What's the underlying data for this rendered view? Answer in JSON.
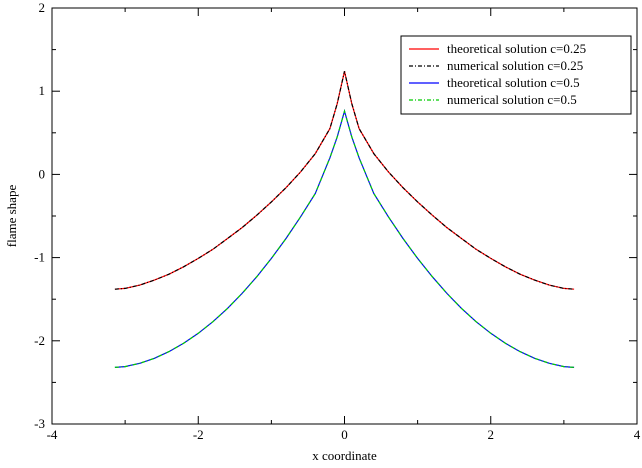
{
  "chart_data": {
    "type": "line",
    "xlabel": "x coordinate",
    "ylabel": "flame shape",
    "xlim": [
      -4,
      4
    ],
    "ylim": [
      -3,
      2
    ],
    "xticks": [
      -4,
      -2,
      0,
      2,
      4
    ],
    "yticks": [
      -3,
      -2,
      -1,
      0,
      1,
      2
    ],
    "x_tick_labels": [
      "-4",
      "-2",
      "0",
      "2",
      "4"
    ],
    "y_tick_labels": [
      "-3",
      "-2",
      "-1",
      "0",
      "1",
      "2"
    ],
    "grid": false,
    "legend_position": "top-right",
    "series": [
      {
        "name": "theoretical solution c=0.25",
        "color": "#ff0000",
        "dash": "solid",
        "x": [
          -3.14,
          -3.0,
          -2.8,
          -2.6,
          -2.4,
          -2.2,
          -2.0,
          -1.8,
          -1.6,
          -1.4,
          -1.2,
          -1.0,
          -0.8,
          -0.6,
          -0.4,
          -0.2,
          -0.1,
          0.0,
          0.1,
          0.2,
          0.4,
          0.6,
          0.8,
          1.0,
          1.2,
          1.4,
          1.6,
          1.8,
          2.0,
          2.2,
          2.4,
          2.6,
          2.8,
          3.0,
          3.14
        ],
        "y": [
          -1.38,
          -1.37,
          -1.33,
          -1.27,
          -1.2,
          -1.11,
          -1.01,
          -0.9,
          -0.77,
          -0.64,
          -0.49,
          -0.33,
          -0.16,
          0.03,
          0.25,
          0.55,
          0.85,
          1.24,
          0.85,
          0.55,
          0.25,
          0.03,
          -0.16,
          -0.33,
          -0.49,
          -0.64,
          -0.77,
          -0.9,
          -1.01,
          -1.11,
          -1.2,
          -1.27,
          -1.33,
          -1.37,
          -1.38
        ]
      },
      {
        "name": "numerical solution c=0.25",
        "color": "#000000",
        "dash": "dash-dot",
        "x": [
          -3.14,
          -3.0,
          -2.8,
          -2.6,
          -2.4,
          -2.2,
          -2.0,
          -1.8,
          -1.6,
          -1.4,
          -1.2,
          -1.0,
          -0.8,
          -0.6,
          -0.4,
          -0.2,
          -0.1,
          0.0,
          0.1,
          0.2,
          0.4,
          0.6,
          0.8,
          1.0,
          1.2,
          1.4,
          1.6,
          1.8,
          2.0,
          2.2,
          2.4,
          2.6,
          2.8,
          3.0,
          3.14
        ],
        "y": [
          -1.38,
          -1.37,
          -1.33,
          -1.27,
          -1.2,
          -1.11,
          -1.01,
          -0.9,
          -0.77,
          -0.64,
          -0.49,
          -0.33,
          -0.16,
          0.03,
          0.25,
          0.55,
          0.85,
          1.24,
          0.85,
          0.55,
          0.25,
          0.03,
          -0.16,
          -0.33,
          -0.49,
          -0.64,
          -0.77,
          -0.9,
          -1.01,
          -1.11,
          -1.2,
          -1.27,
          -1.33,
          -1.37,
          -1.38
        ]
      },
      {
        "name": "theoretical solution c=0.5",
        "color": "#0000ff",
        "dash": "solid",
        "x": [
          -3.14,
          -3.0,
          -2.8,
          -2.6,
          -2.4,
          -2.2,
          -2.0,
          -1.8,
          -1.6,
          -1.4,
          -1.2,
          -1.0,
          -0.8,
          -0.6,
          -0.4,
          -0.2,
          -0.1,
          0.0,
          0.1,
          0.2,
          0.4,
          0.6,
          0.8,
          1.0,
          1.2,
          1.4,
          1.6,
          1.8,
          2.0,
          2.2,
          2.4,
          2.6,
          2.8,
          3.0,
          3.14
        ],
        "y": [
          -2.32,
          -2.31,
          -2.27,
          -2.21,
          -2.13,
          -2.03,
          -1.91,
          -1.77,
          -1.61,
          -1.43,
          -1.23,
          -1.01,
          -0.77,
          -0.51,
          -0.23,
          0.2,
          0.45,
          0.76,
          0.45,
          0.2,
          -0.23,
          -0.51,
          -0.77,
          -1.01,
          -1.23,
          -1.43,
          -1.61,
          -1.77,
          -1.91,
          -2.03,
          -2.13,
          -2.21,
          -2.27,
          -2.31,
          -2.32
        ]
      },
      {
        "name": "numerical solution c=0.5",
        "color": "#00cc00",
        "dash": "dash-dot",
        "x": [
          -3.14,
          -3.0,
          -2.8,
          -2.6,
          -2.4,
          -2.2,
          -2.0,
          -1.8,
          -1.6,
          -1.4,
          -1.2,
          -1.0,
          -0.8,
          -0.6,
          -0.4,
          -0.2,
          -0.1,
          0.0,
          0.1,
          0.2,
          0.4,
          0.6,
          0.8,
          1.0,
          1.2,
          1.4,
          1.6,
          1.8,
          2.0,
          2.2,
          2.4,
          2.6,
          2.8,
          3.0,
          3.14
        ],
        "y": [
          -2.32,
          -2.31,
          -2.27,
          -2.21,
          -2.13,
          -2.03,
          -1.91,
          -1.77,
          -1.61,
          -1.43,
          -1.23,
          -1.01,
          -0.77,
          -0.51,
          -0.23,
          0.2,
          0.45,
          0.76,
          0.45,
          0.2,
          -0.23,
          -0.51,
          -0.77,
          -1.01,
          -1.23,
          -1.43,
          -1.61,
          -1.77,
          -1.91,
          -2.03,
          -2.13,
          -2.21,
          -2.27,
          -2.31,
          -2.32
        ]
      }
    ]
  }
}
